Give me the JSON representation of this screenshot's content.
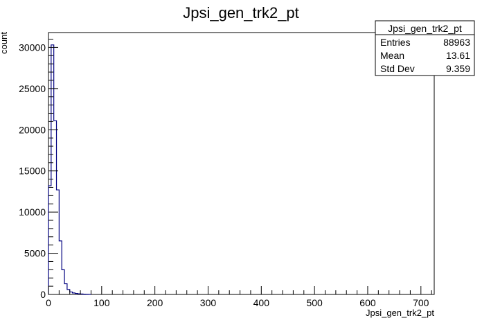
{
  "chart_data": {
    "type": "bar",
    "style": "step-histogram",
    "title": "Jpsi_gen_trk2_pt",
    "xlabel": "Jpsi_gen_trk2_pt",
    "ylabel": "count",
    "xlim": [
      0,
      725
    ],
    "ylim": [
      0,
      31800
    ],
    "x_ticks": [
      0,
      100,
      200,
      300,
      400,
      500,
      600,
      700
    ],
    "y_ticks": [
      0,
      5000,
      10000,
      15000,
      20000,
      25000,
      30000
    ],
    "bin_width": 5,
    "bins": [
      {
        "x": 0,
        "value": 13200
      },
      {
        "x": 5,
        "value": 30300
      },
      {
        "x": 10,
        "value": 21100
      },
      {
        "x": 15,
        "value": 12700
      },
      {
        "x": 20,
        "value": 6500
      },
      {
        "x": 25,
        "value": 3000
      },
      {
        "x": 30,
        "value": 1300
      },
      {
        "x": 35,
        "value": 600
      },
      {
        "x": 40,
        "value": 300
      },
      {
        "x": 45,
        "value": 180
      },
      {
        "x": 50,
        "value": 120
      },
      {
        "x": 55,
        "value": 80
      },
      {
        "x": 60,
        "value": 50
      },
      {
        "x": 65,
        "value": 30
      },
      {
        "x": 70,
        "value": 20
      },
      {
        "x": 75,
        "value": 10
      }
    ],
    "line_color": "#000080",
    "grid": false,
    "legend_position": "top-right",
    "stats": {
      "title": "Jpsi_gen_trk2_pt",
      "rows": [
        {
          "label": "Entries",
          "value": "88963"
        },
        {
          "label": "Mean",
          "value": "13.61"
        },
        {
          "label": "Std Dev",
          "value": "9.359"
        }
      ]
    }
  }
}
